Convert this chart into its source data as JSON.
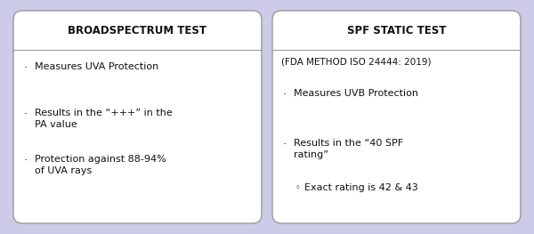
{
  "background_color": "#cccce8",
  "box_fill_color": "#ffffff",
  "box_edge_color": "#999999",
  "title_color": "#111111",
  "text_color": "#111111",
  "left_title": "BROADSPECTRUM TEST",
  "right_title": "SPF STATIC TEST",
  "right_subtitle": "(FDA METHOD ISO 24444: 2019)",
  "left_bullets": [
    "Measures UVA Protection",
    "Results in the “+++” in the\nPA value",
    "Protection against 88-94%\nof UVA rays"
  ],
  "right_bullets": [
    "Measures UVB Protection",
    "Results in the “40 SPF\nrating”"
  ],
  "right_sub_bullets": [
    "Exact rating is 42 & 43"
  ],
  "title_fontsize": 8.5,
  "subtitle_fontsize": 7.5,
  "bullet_fontsize": 8.0,
  "fig_width": 6.0,
  "fig_height": 2.63
}
